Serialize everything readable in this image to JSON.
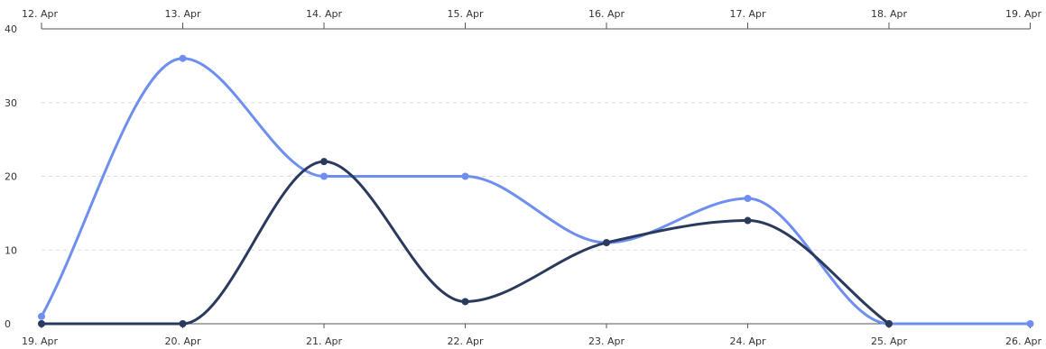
{
  "chart_data": {
    "type": "line",
    "x_top": [
      "12. Apr",
      "13. Apr",
      "14. Apr",
      "15. Apr",
      "16. Apr",
      "17. Apr",
      "18. Apr",
      "19. Apr"
    ],
    "x_bottom": [
      "19. Apr",
      "20. Apr",
      "21. Apr",
      "22. Apr",
      "23. Apr",
      "24. Apr",
      "25. Apr",
      "26. Apr"
    ],
    "y_ticks": [
      0,
      10,
      20,
      30,
      40
    ],
    "ylim": [
      0,
      40
    ],
    "grid": true,
    "series": [
      {
        "axis": "bottom",
        "color": "#6e8ff0",
        "values": [
          1,
          36,
          20,
          20,
          11,
          17,
          0,
          0
        ]
      },
      {
        "axis": "top",
        "color": "#2a3a5c",
        "values": [
          0,
          0,
          22,
          3,
          11,
          14,
          0
        ]
      }
    ]
  }
}
